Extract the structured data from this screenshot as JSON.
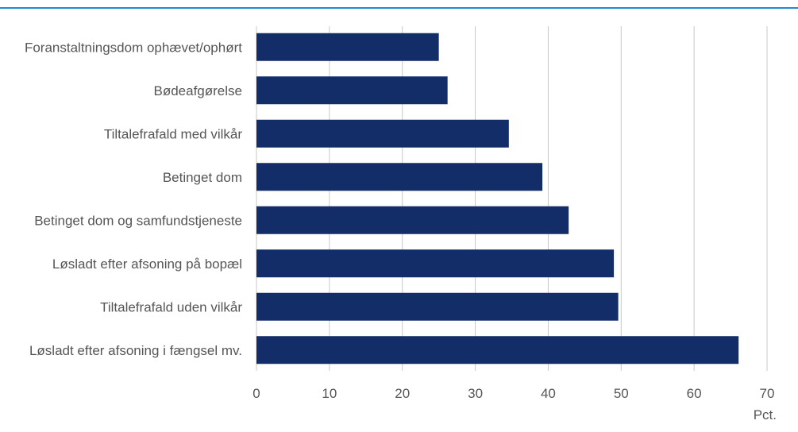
{
  "chart_data": {
    "type": "bar",
    "orientation": "horizontal",
    "categories": [
      "Foranstaltningsdom ophævet/ophørt",
      "Bødeafgørelse",
      "Tiltalefrafald med vilkår",
      "Betinget dom",
      "Betinget dom og samfundstjeneste",
      "Løsladt efter afsoning på bopæl",
      "Tiltalefrafald uden vilkår",
      "Løsladt efter afsoning i fængsel mv."
    ],
    "values": [
      25,
      26.2,
      34.6,
      39.2,
      42.8,
      49,
      49.6,
      66.1
    ],
    "xlim": [
      0,
      70
    ],
    "xticks": [
      "0",
      "10",
      "20",
      "30",
      "40",
      "50",
      "60",
      "70"
    ],
    "xlabel": "Pct.",
    "grid": "vertical",
    "bar_color": "#132D68",
    "rule_color": "#1A8FD0",
    "grid_color": "#C8C8C8"
  }
}
